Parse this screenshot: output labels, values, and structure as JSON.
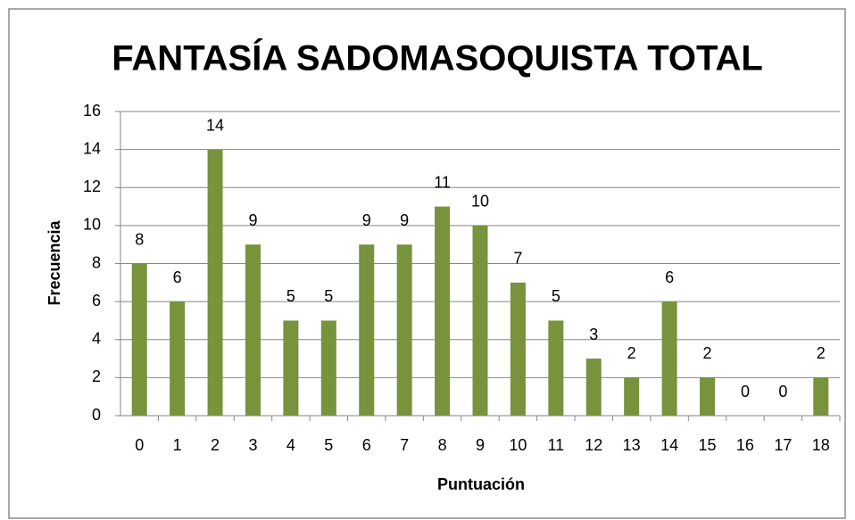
{
  "chart_data": {
    "type": "bar",
    "title": "FANTASÍA SADOMASOQUISTA TOTAL",
    "x_label": "Puntuación",
    "y_label": "Frecuencia",
    "categories": [
      "0",
      "1",
      "2",
      "3",
      "4",
      "5",
      "6",
      "7",
      "8",
      "9",
      "10",
      "11",
      "12",
      "13",
      "14",
      "15",
      "16",
      "17",
      "18"
    ],
    "values": [
      8,
      6,
      14,
      9,
      5,
      5,
      9,
      9,
      11,
      10,
      7,
      5,
      3,
      2,
      6,
      2,
      0,
      0,
      2
    ],
    "color": "#77933c",
    "ylim": [
      0,
      16
    ],
    "yticks": [
      0,
      2,
      4,
      6,
      8,
      10,
      12,
      14,
      16
    ],
    "grid": true
  }
}
